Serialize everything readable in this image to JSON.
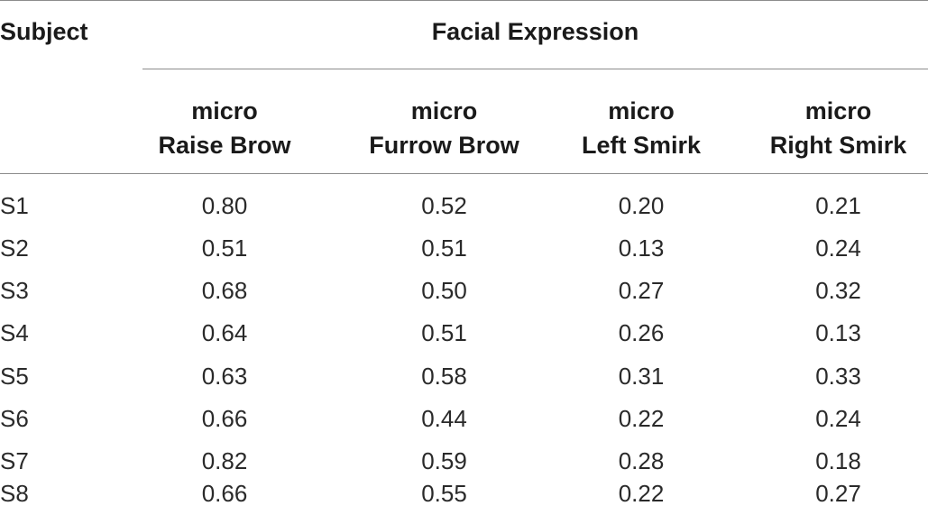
{
  "table": {
    "subject_header": "Subject",
    "group_header": "Facial Expression",
    "columns": [
      {
        "line1": "micro",
        "line2": "Raise Brow"
      },
      {
        "line1": "micro",
        "line2": "Furrow Brow"
      },
      {
        "line1": "micro",
        "line2": "Left Smirk"
      },
      {
        "line1": "micro",
        "line2": "Right Smirk"
      }
    ],
    "rows": [
      {
        "subject": "S1",
        "values": [
          "0.80",
          "0.52",
          "0.20",
          "0.21"
        ]
      },
      {
        "subject": "S2",
        "values": [
          "0.51",
          "0.51",
          "0.13",
          "0.24"
        ]
      },
      {
        "subject": "S3",
        "values": [
          "0.68",
          "0.50",
          "0.27",
          "0.32"
        ]
      },
      {
        "subject": "S4",
        "values": [
          "0.64",
          "0.51",
          "0.26",
          "0.13"
        ]
      },
      {
        "subject": "S5",
        "values": [
          "0.63",
          "0.58",
          "0.31",
          "0.33"
        ]
      },
      {
        "subject": "S6",
        "values": [
          "0.66",
          "0.44",
          "0.22",
          "0.24"
        ]
      },
      {
        "subject": "S7",
        "values": [
          "0.82",
          "0.59",
          "0.28",
          "0.18"
        ]
      },
      {
        "subject": "S8",
        "values": [
          "0.66",
          "0.55",
          "0.22",
          "0.27"
        ]
      }
    ]
  }
}
